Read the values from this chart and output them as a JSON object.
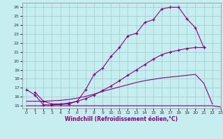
{
  "xlabel": "Windchill (Refroidissement éolien,°C)",
  "xlim": [
    -0.5,
    23
  ],
  "ylim": [
    14.7,
    26.5
  ],
  "xticks": [
    0,
    1,
    2,
    3,
    4,
    5,
    6,
    7,
    8,
    9,
    10,
    11,
    12,
    13,
    14,
    15,
    16,
    17,
    18,
    19,
    20,
    21,
    22,
    23
  ],
  "yticks": [
    15,
    16,
    17,
    18,
    19,
    20,
    21,
    22,
    23,
    24,
    25,
    26
  ],
  "bg_color": "#c6eef0",
  "line_color": "#880088",
  "grid_color": "#99cccc",
  "line1": {
    "x": [
      0,
      1,
      2,
      3,
      4,
      5,
      6,
      7,
      8,
      9,
      10,
      11,
      12,
      13,
      14,
      15,
      16,
      17,
      18,
      19,
      20,
      21,
      22,
      23
    ],
    "y": [
      15.0,
      15.0,
      15.0,
      15.0,
      15.0,
      15.0,
      15.0,
      15.0,
      15.0,
      15.0,
      15.0,
      15.0,
      15.0,
      15.0,
      15.0,
      15.0,
      15.0,
      15.0,
      15.0,
      15.0,
      15.0,
      15.0,
      15.0,
      14.85
    ]
  },
  "line2": {
    "x": [
      0,
      1,
      2,
      3,
      4,
      5,
      6,
      7,
      8,
      9,
      10,
      11,
      12,
      13,
      14,
      15,
      16,
      17,
      18,
      19,
      20,
      21,
      22
    ],
    "y": [
      15.5,
      15.5,
      15.5,
      15.55,
      15.6,
      15.7,
      15.85,
      16.05,
      16.3,
      16.6,
      16.85,
      17.1,
      17.35,
      17.6,
      17.8,
      17.95,
      18.1,
      18.2,
      18.3,
      18.4,
      18.5,
      17.5,
      15.2
    ]
  },
  "line3": {
    "x": [
      0,
      1,
      2,
      3,
      4,
      5,
      6,
      7,
      8,
      9,
      10,
      11,
      12,
      13,
      14,
      15,
      16,
      17,
      18,
      19,
      20,
      21
    ],
    "y": [
      16.8,
      16.2,
      15.1,
      15.1,
      15.15,
      15.2,
      15.5,
      16.8,
      18.5,
      19.2,
      20.5,
      21.5,
      22.8,
      23.1,
      24.3,
      24.6,
      25.8,
      26.0,
      26.0,
      24.7,
      23.7,
      21.5
    ]
  },
  "line4": {
    "x": [
      1,
      2,
      3,
      4,
      5,
      6,
      7,
      8,
      9,
      10,
      11,
      12,
      13,
      14,
      15,
      16,
      17,
      18,
      19,
      20,
      21
    ],
    "y": [
      16.5,
      15.5,
      15.2,
      15.2,
      15.3,
      15.5,
      15.8,
      16.2,
      16.7,
      17.2,
      17.8,
      18.4,
      19.0,
      19.6,
      20.2,
      20.7,
      21.0,
      21.2,
      21.4,
      21.5,
      21.5
    ]
  }
}
